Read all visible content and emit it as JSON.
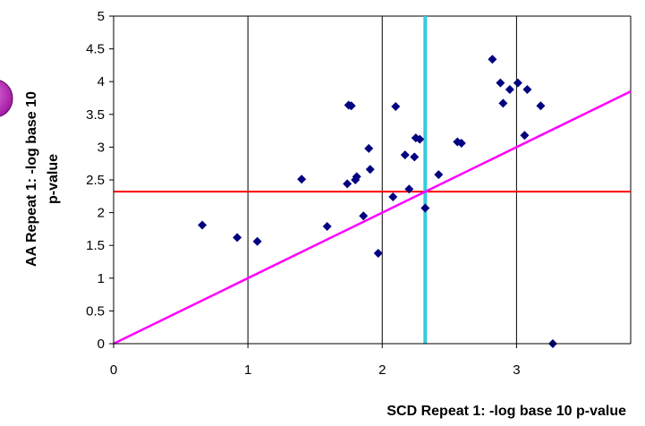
{
  "chart_data": {
    "type": "scatter",
    "xlabel": "SCD Repeat 1: -log base 10 p-value",
    "ylabel_line1": "AA Repeat 1: -log base 10",
    "ylabel_line2": "p-value",
    "xlim": [
      0,
      3.85
    ],
    "ylim": [
      0,
      5
    ],
    "x_ticks": [
      "0",
      "1",
      "2",
      "3"
    ],
    "x_tick_values": [
      0,
      1,
      2,
      3
    ],
    "y_ticks": [
      "0",
      "0.5",
      "1",
      "1.5",
      "2",
      "2.5",
      "3",
      "3.5",
      "4",
      "4.5",
      "5"
    ],
    "y_tick_values": [
      0,
      0.5,
      1,
      1.5,
      2,
      2.5,
      3,
      3.5,
      4,
      4.5,
      5
    ],
    "grid": "vertical",
    "marker_color": "#000080",
    "points": [
      [
        0.66,
        1.81
      ],
      [
        0.92,
        1.62
      ],
      [
        1.07,
        1.56
      ],
      [
        1.4,
        2.51
      ],
      [
        1.59,
        1.79
      ],
      [
        1.74,
        2.44
      ],
      [
        1.75,
        3.64
      ],
      [
        1.77,
        3.63
      ],
      [
        1.8,
        2.5
      ],
      [
        1.81,
        2.55
      ],
      [
        1.86,
        1.95
      ],
      [
        1.9,
        2.98
      ],
      [
        1.91,
        2.66
      ],
      [
        1.97,
        1.38
      ],
      [
        2.08,
        2.24
      ],
      [
        2.1,
        3.62
      ],
      [
        2.17,
        2.88
      ],
      [
        2.2,
        2.36
      ],
      [
        2.24,
        2.85
      ],
      [
        2.25,
        3.14
      ],
      [
        2.28,
        3.12
      ],
      [
        2.32,
        2.07
      ],
      [
        2.42,
        2.58
      ],
      [
        2.56,
        3.08
      ],
      [
        2.59,
        3.06
      ],
      [
        2.82,
        4.34
      ],
      [
        2.88,
        3.98
      ],
      [
        2.9,
        3.67
      ],
      [
        2.95,
        3.88
      ],
      [
        3.01,
        3.98
      ],
      [
        3.06,
        3.18
      ],
      [
        3.08,
        3.88
      ],
      [
        3.18,
        3.63
      ],
      [
        3.27,
        0.0
      ]
    ],
    "reference_lines": [
      {
        "kind": "horizontal",
        "y": 2.32,
        "color": "#ff0000"
      },
      {
        "kind": "vertical",
        "x": 2.32,
        "color": "#33ccdd"
      },
      {
        "kind": "diagonal",
        "from": [
          0,
          0
        ],
        "to": [
          3.85,
          3.85
        ],
        "color": "#ff00ff"
      }
    ]
  }
}
